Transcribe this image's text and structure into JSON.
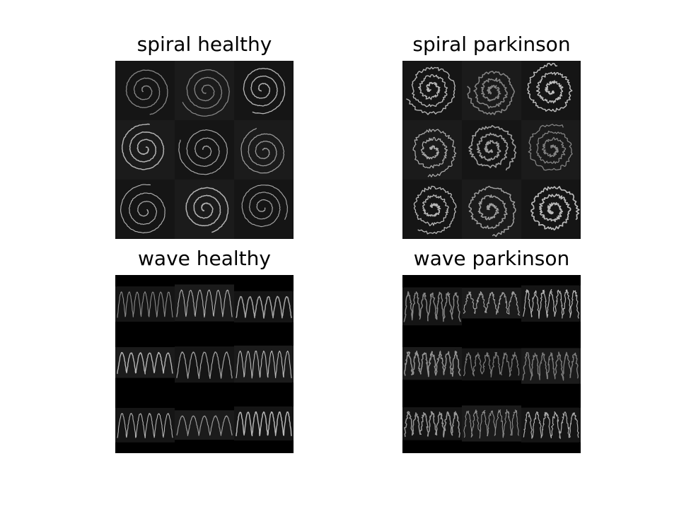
{
  "figure": {
    "panels": [
      {
        "title": "spiral healthy",
        "kind": "spiral",
        "style": "smooth"
      },
      {
        "title": "spiral parkinson",
        "kind": "spiral",
        "style": "tremor"
      },
      {
        "title": "wave healthy",
        "kind": "wave",
        "style": "smooth"
      },
      {
        "title": "wave parkinson",
        "kind": "wave",
        "style": "tremor"
      }
    ],
    "grid": {
      "rows": 3,
      "cols": 3
    },
    "colors": {
      "background": "#ffffff",
      "tile": "#151515",
      "tile_alt": "#1b1b1b",
      "letterbox": "#000000",
      "stroke": "#cfcfcf"
    }
  }
}
